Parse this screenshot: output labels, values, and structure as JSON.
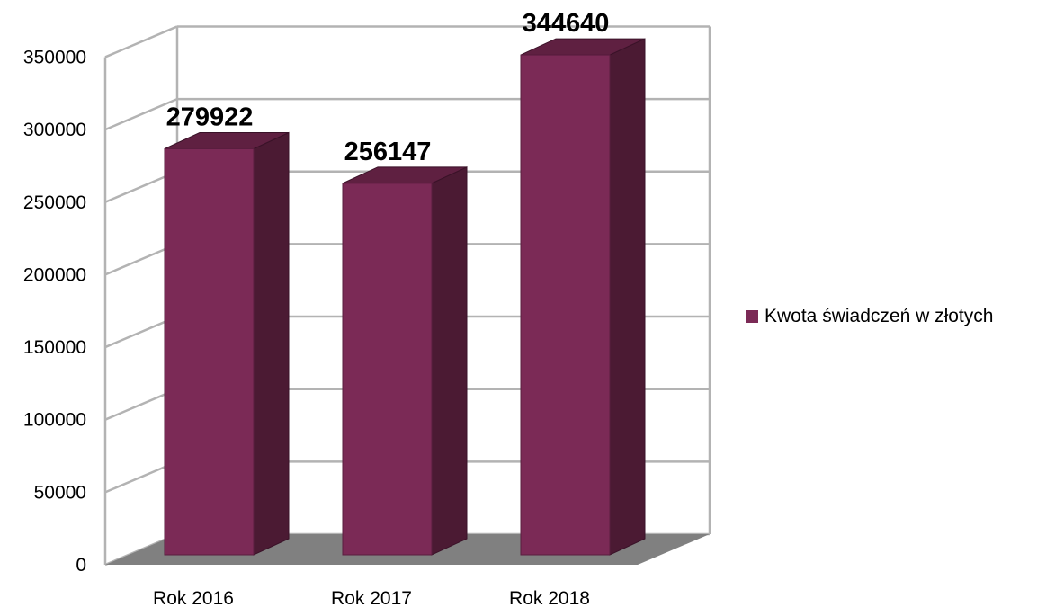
{
  "chart_data": {
    "type": "bar",
    "style": "3d-column",
    "categories": [
      "Rok 2016",
      "Rok 2017",
      "Rok 2018"
    ],
    "series": [
      {
        "name": "Kwota świadczeń w złotych",
        "values": [
          279922,
          256147,
          344640
        ]
      }
    ],
    "data_labels": [
      "279922",
      "256147",
      "344640"
    ],
    "y_ticks": [
      "0",
      "50000",
      "100000",
      "150000",
      "200000",
      "250000",
      "300000",
      "350000"
    ],
    "ylim": [
      0,
      350000
    ],
    "grid": true,
    "legend_position": "right",
    "colors": {
      "bar_front": "#7b2a56",
      "bar_side": "#4b1a33",
      "bar_top": "#5f2041",
      "floor": "#808080",
      "grid": "#b3b3b3"
    }
  }
}
